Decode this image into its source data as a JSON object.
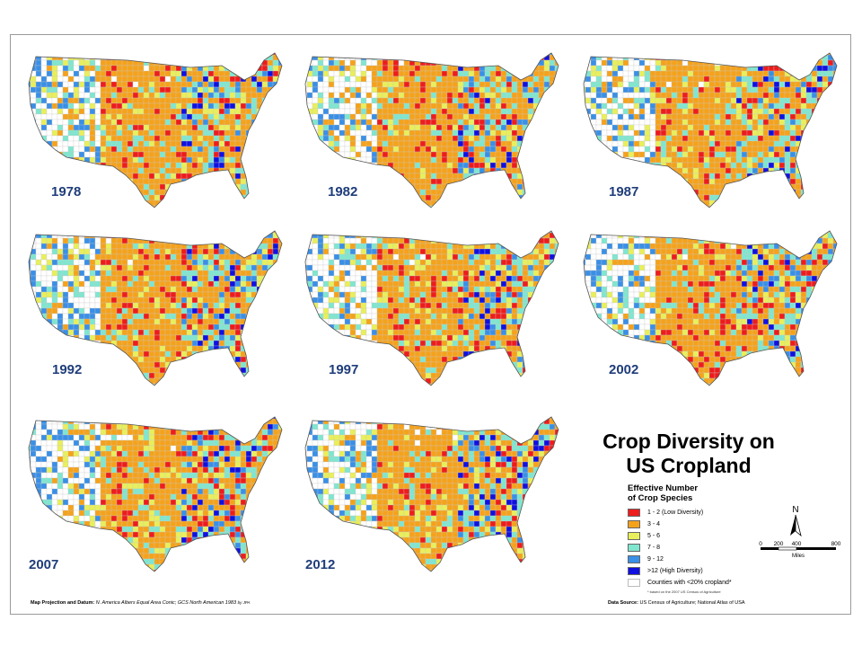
{
  "title": {
    "line1": "Crop Diversity on",
    "line2": "US Cropland"
  },
  "maps": [
    {
      "year": "1978"
    },
    {
      "year": "1982"
    },
    {
      "year": "1987"
    },
    {
      "year": "1992"
    },
    {
      "year": "1997"
    },
    {
      "year": "2002"
    },
    {
      "year": "2007"
    },
    {
      "year": "2012"
    }
  ],
  "legend": {
    "title_line1": "Effective Number",
    "title_line2": "of Crop Species",
    "items": [
      {
        "label": "1 - 2 (Low Diversity)",
        "color": "#ee1c1c"
      },
      {
        "label": "3 - 4",
        "color": "#f5a21b"
      },
      {
        "label": "5 - 6",
        "color": "#e9ef5a"
      },
      {
        "label": "7 - 8",
        "color": "#7fe6cf"
      },
      {
        "label": "9 - 12",
        "color": "#3a8fe6"
      },
      {
        "label": ">12 (High Diversity)",
        "color": "#1010e0"
      },
      {
        "label": "Counties with <20% cropland*",
        "color": "#ffffff"
      }
    ],
    "footnote": "* based on the 2007 US Census of Agriculture"
  },
  "north_arrow": {
    "label": "N"
  },
  "scale": {
    "ticks": [
      "0",
      "200",
      "400",
      "800"
    ],
    "unit": "Miles"
  },
  "footer": {
    "projection_label": "Map Projection and Datum:",
    "projection_value": "N. America Albers Equal Area Conic; GCS North American 1983",
    "credit": "by JPA",
    "source_label": "Data Source:",
    "source_value": "US Census of Agriculture; National Atlas of USA"
  }
}
